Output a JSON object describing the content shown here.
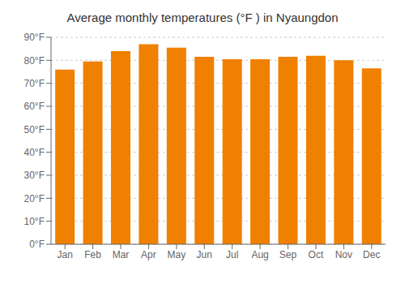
{
  "chart_data": {
    "type": "bar",
    "title": "Average monthly temperatures (°F ) in Nyaungdon",
    "categories": [
      "Jan",
      "Feb",
      "Mar",
      "Apr",
      "May",
      "Jun",
      "Jul",
      "Aug",
      "Sep",
      "Oct",
      "Nov",
      "Dec"
    ],
    "values": [
      76,
      79.5,
      84,
      87,
      85.5,
      81.5,
      80.5,
      80.5,
      81.5,
      82,
      80,
      76.5
    ],
    "color": "#F08000",
    "ylim": [
      0,
      90
    ],
    "yticks": [
      {
        "value": 0,
        "label": "0°F"
      },
      {
        "value": 10,
        "label": "10°F"
      },
      {
        "value": 20,
        "label": "20°F"
      },
      {
        "value": 30,
        "label": "30°F"
      },
      {
        "value": 40,
        "label": "40°F"
      },
      {
        "value": 50,
        "label": "50°F"
      },
      {
        "value": 60,
        "label": "60°F"
      },
      {
        "value": 70,
        "label": "70°F"
      },
      {
        "value": 80,
        "label": "80°F"
      },
      {
        "value": 90,
        "label": "90°F"
      }
    ],
    "grid": true
  }
}
